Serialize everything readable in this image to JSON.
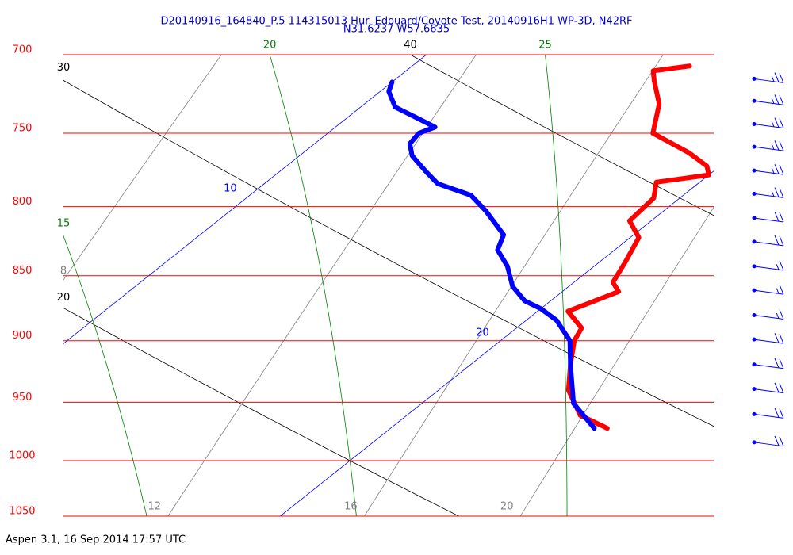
{
  "chart_data": {
    "type": "skewt",
    "title": "D20140916_164840_P.5 114315013 Hur. Edouard/Coyote Test, 20140916H1 WP-3D, N42RF",
    "subtitle": "N31.6237 W57.6635",
    "footer": "Aspen 3.1, 16 Sep 2014  17:57 UTC",
    "ylim": [
      700,
      1050
    ],
    "yticks": [
      700,
      750,
      800,
      850,
      900,
      950,
      1000,
      1050
    ],
    "log_y": true,
    "ytick_color": "#ff0000",
    "xlim": [
      15,
      30
    ],
    "isotherms": {
      "color": "#0000ff",
      "values": [
        10,
        20
      ]
    },
    "dry_adiabats": {
      "color": "#000000",
      "values": [
        20,
        30,
        40
      ]
    },
    "moist_adiabats": {
      "color": "#008000",
      "values": [
        15,
        20,
        25
      ]
    },
    "mixing_ratio": {
      "color": "#808080",
      "values": [
        8,
        12,
        16,
        20
      ]
    },
    "series": [
      {
        "color": "#ff0000",
        "pressure": [
          972,
          961,
          940,
          919,
          900,
          890,
          877,
          862,
          855,
          840,
          822,
          810,
          794,
          783,
          778,
          772,
          763,
          750,
          731,
          716,
          710,
          707
        ],
        "values": [
          25.0,
          24.0,
          23.0,
          22.3,
          21.7,
          21.5,
          20.7,
          21.3,
          20.9,
          20.6,
          20.2,
          19.5,
          19.4,
          19.0,
          20.0,
          19.7,
          18.9,
          17.5,
          16.8,
          16.0,
          15.7,
          16.4
        ]
      },
      {
        "color": "#0000ff",
        "pressure": [
          972,
          951,
          919,
          900,
          884,
          875,
          869,
          858,
          843,
          831,
          820,
          803,
          792,
          784,
          776,
          765,
          757,
          750,
          746,
          739,
          733,
          723,
          717
        ],
        "values": [
          24.7,
          23.5,
          22.3,
          21.6,
          20.7,
          20.0,
          19.4,
          18.7,
          18.0,
          17.3,
          17.0,
          15.9,
          15.1,
          14.0,
          13.4,
          12.6,
          12.2,
          12.1,
          12.3,
          11.5,
          10.8,
          10.2,
          10.0
        ]
      }
    ],
    "wind_barbs": {
      "color": "#0000ff",
      "pressure": [
        715,
        729,
        744,
        759,
        775,
        791,
        808,
        825,
        843,
        861,
        880,
        899,
        919,
        939,
        960,
        984
      ],
      "speed": [
        25,
        25,
        25,
        25,
        25,
        25,
        20,
        20,
        15,
        15,
        15,
        20,
        20,
        20,
        20,
        20
      ]
    }
  }
}
